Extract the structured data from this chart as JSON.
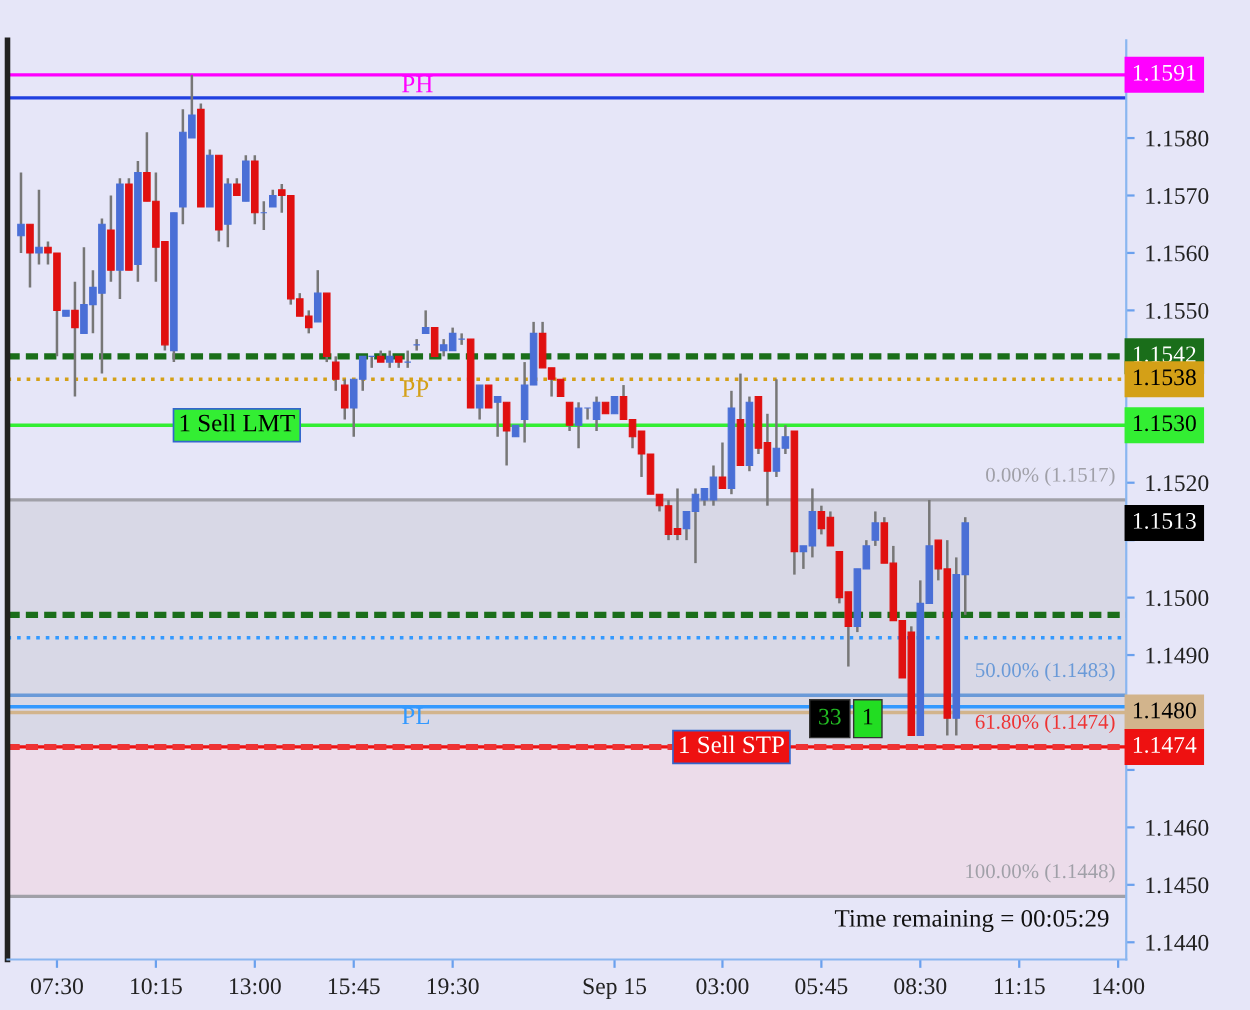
{
  "chart_data": {
    "type": "candlestick",
    "categories": [
      null,
      null,
      null,
      null,
      "07:30",
      null,
      null,
      null,
      null,
      null,
      null,
      null,
      null,
      null,
      null,
      "10:15",
      null,
      null,
      null,
      null,
      null,
      null,
      null,
      null,
      null,
      null,
      "13:00",
      null,
      null,
      null,
      null,
      null,
      null,
      null,
      null,
      null,
      null,
      "15:45",
      null,
      null,
      null,
      null,
      null,
      null,
      null,
      null,
      null,
      null,
      "19:30",
      null,
      null,
      null,
      null,
      null,
      null,
      null,
      null,
      null,
      null,
      null,
      null,
      null,
      null,
      null,
      null,
      null,
      "Sep 15",
      null,
      null,
      null,
      null,
      null,
      null,
      null,
      null,
      null,
      null,
      null,
      "03:00",
      null,
      null,
      null,
      null,
      null,
      null,
      null,
      null,
      null,
      null,
      "05:45",
      null,
      null,
      null,
      null,
      null,
      null,
      null,
      null,
      null,
      null,
      "08:30",
      null,
      null,
      null,
      null,
      null,
      null,
      null,
      null,
      null,
      null,
      "11:15",
      null,
      null,
      null,
      null,
      null,
      null,
      null,
      null,
      null,
      null,
      "14:00"
    ],
    "ohlc": [
      [
        1.1563,
        1.1574,
        1.156,
        1.1565
      ],
      [
        1.1565,
        1.1565,
        1.1554,
        1.156
      ],
      [
        1.156,
        1.1571,
        1.1558,
        1.1561
      ],
      [
        1.1561,
        1.1562,
        1.1558,
        1.156
      ],
      [
        1.156,
        1.156,
        1.1542,
        1.155
      ],
      [
        1.1549,
        1.155,
        1.1549,
        1.155
      ],
      [
        1.155,
        1.1555,
        1.1535,
        1.1547
      ],
      [
        1.1546,
        1.1561,
        1.1546,
        1.1551
      ],
      [
        1.1551,
        1.1557,
        1.1546,
        1.1554
      ],
      [
        1.1553,
        1.1566,
        1.1539,
        1.1565
      ],
      [
        1.1564,
        1.157,
        1.1555,
        1.1557
      ],
      [
        1.1557,
        1.1573,
        1.1552,
        1.1572
      ],
      [
        1.1572,
        1.1573,
        1.1557,
        1.1557
      ],
      [
        1.1558,
        1.1576,
        1.1555,
        1.1574
      ],
      [
        1.1574,
        1.1581,
        1.1569,
        1.1569
      ],
      [
        1.1569,
        1.1574,
        1.1555,
        1.1561
      ],
      [
        1.1562,
        1.1562,
        1.1543,
        1.1544
      ],
      [
        1.1543,
        1.1567,
        1.1541,
        1.1567
      ],
      [
        1.1568,
        1.1585,
        1.1565,
        1.1581
      ],
      [
        1.158,
        1.1591,
        1.158,
        1.1584
      ],
      [
        1.1585,
        1.1586,
        1.1568,
        1.1568
      ],
      [
        1.1568,
        1.1578,
        1.1568,
        1.1577
      ],
      [
        1.1577,
        1.1577,
        1.1562,
        1.1564
      ],
      [
        1.1565,
        1.1573,
        1.1561,
        1.1572
      ],
      [
        1.1572,
        1.1573,
        1.157,
        1.157
      ],
      [
        1.1569,
        1.1577,
        1.1569,
        1.1576
      ],
      [
        1.1576,
        1.1577,
        1.1565,
        1.1567
      ],
      [
        1.1567,
        1.1569,
        1.1564,
        1.1567
      ],
      [
        1.1568,
        1.1571,
        1.1568,
        1.157
      ],
      [
        1.1571,
        1.1572,
        1.1567,
        1.157
      ],
      [
        1.157,
        1.157,
        1.1551,
        1.1552
      ],
      [
        1.1552,
        1.1553,
        1.1549,
        1.1549
      ],
      [
        1.1549,
        1.155,
        1.1546,
        1.1547
      ],
      [
        1.1548,
        1.1557,
        1.1548,
        1.1553
      ],
      [
        1.1553,
        1.1553,
        1.1541,
        1.1542
      ],
      [
        1.1541,
        1.1542,
        1.1536,
        1.1538
      ],
      [
        1.1537,
        1.1538,
        1.1531,
        1.1533
      ],
      [
        1.1533,
        1.1538,
        1.1528,
        1.1538
      ],
      [
        1.1538,
        1.1542,
        1.1536,
        1.1542
      ],
      [
        1.1542,
        1.1542,
        1.154,
        1.1542
      ],
      [
        1.1542,
        1.1543,
        1.1541,
        1.1541
      ],
      [
        1.1541,
        1.1543,
        1.154,
        1.1542
      ],
      [
        1.1542,
        1.1542,
        1.154,
        1.1541
      ],
      [
        1.1541,
        1.1543,
        1.154,
        1.1541
      ],
      [
        1.1544,
        1.1545,
        1.1543,
        1.1544
      ],
      [
        1.1546,
        1.155,
        1.1546,
        1.1547
      ],
      [
        1.1547,
        1.1547,
        1.1542,
        1.1542
      ],
      [
        1.1543,
        1.1545,
        1.1542,
        1.1544
      ],
      [
        1.1543,
        1.1547,
        1.1543,
        1.1546
      ],
      [
        1.1545,
        1.1546,
        1.1544,
        1.1545
      ],
      [
        1.1545,
        1.1545,
        1.1533,
        1.1533
      ],
      [
        1.1533,
        1.1537,
        1.1531,
        1.1537
      ],
      [
        1.1537,
        1.1537,
        1.1533,
        1.1533
      ],
      [
        1.1534,
        1.1535,
        1.1528,
        1.1535
      ],
      [
        1.1534,
        1.1534,
        1.1523,
        1.1529
      ],
      [
        1.1528,
        1.153,
        1.1528,
        1.153
      ],
      [
        1.1531,
        1.1541,
        1.1527,
        1.1537
      ],
      [
        1.1537,
        1.1548,
        1.1537,
        1.1546
      ],
      [
        1.1546,
        1.1548,
        1.154,
        1.154
      ],
      [
        1.154,
        1.154,
        1.1535,
        1.1538
      ],
      [
        1.1538,
        1.1538,
        1.1535,
        1.1535
      ],
      [
        1.1534,
        1.1534,
        1.1529,
        1.153
      ],
      [
        1.153,
        1.1534,
        1.1526,
        1.1533
      ],
      [
        1.1533,
        1.1533,
        1.1531,
        1.1533
      ],
      [
        1.1531,
        1.1535,
        1.1529,
        1.1534
      ],
      [
        1.1534,
        1.1534,
        1.1532,
        1.1532
      ],
      [
        1.1532,
        1.1535,
        1.1532,
        1.1535
      ],
      [
        1.1535,
        1.1537,
        1.1531,
        1.1531
      ],
      [
        1.1531,
        1.1531,
        1.1526,
        1.1528
      ],
      [
        1.1529,
        1.1529,
        1.1521,
        1.1525
      ],
      [
        1.1525,
        1.1525,
        1.1518,
        1.1518
      ],
      [
        1.1518,
        1.1518,
        1.1515,
        1.1516
      ],
      [
        1.1516,
        1.1517,
        1.151,
        1.1511
      ],
      [
        1.1512,
        1.1519,
        1.151,
        1.1511
      ],
      [
        1.1512,
        1.1515,
        1.151,
        1.1515
      ],
      [
        1.1515,
        1.1519,
        1.1506,
        1.1518
      ],
      [
        1.1517,
        1.1519,
        1.1516,
        1.1519
      ],
      [
        1.1517,
        1.1523,
        1.1516,
        1.1521
      ],
      [
        1.1521,
        1.1527,
        1.1519,
        1.1519
      ],
      [
        1.1519,
        1.1536,
        1.1518,
        1.1533
      ],
      [
        1.1531,
        1.1539,
        1.1523,
        1.1523
      ],
      [
        1.1523,
        1.1535,
        1.1522,
        1.1534
      ],
      [
        1.1535,
        1.1535,
        1.1525,
        1.1526
      ],
      [
        1.1527,
        1.1532,
        1.1516,
        1.1522
      ],
      [
        1.1522,
        1.1538,
        1.1521,
        1.1526
      ],
      [
        1.1526,
        1.153,
        1.1525,
        1.1528
      ],
      [
        1.1529,
        1.1529,
        1.1504,
        1.1508
      ],
      [
        1.1508,
        1.1509,
        1.1505,
        1.1509
      ],
      [
        1.1509,
        1.1519,
        1.1507,
        1.1515
      ],
      [
        1.1515,
        1.1516,
        1.1511,
        1.1512
      ],
      [
        1.1514,
        1.1515,
        1.1509,
        1.1509
      ],
      [
        1.1508,
        1.1508,
        1.1499,
        1.15
      ],
      [
        1.1501,
        1.1501,
        1.1488,
        1.1495
      ],
      [
        1.1495,
        1.1505,
        1.1494,
        1.1505
      ],
      [
        1.1505,
        1.151,
        1.1505,
        1.1509
      ],
      [
        1.151,
        1.1515,
        1.1509,
        1.1513
      ],
      [
        1.1513,
        1.1514,
        1.1506,
        1.1506
      ],
      [
        1.1506,
        1.1509,
        1.1496,
        1.1496
      ],
      [
        1.1496,
        1.1496,
        1.1486,
        1.1486
      ],
      [
        1.1494,
        1.1495,
        1.1476,
        1.1476
      ],
      [
        1.1476,
        1.1503,
        1.1476,
        1.1499
      ],
      [
        1.1499,
        1.1517,
        1.1499,
        1.1509
      ],
      [
        1.151,
        1.151,
        1.1503,
        1.1505
      ],
      [
        1.1505,
        1.151,
        1.1476,
        1.1479
      ],
      [
        1.1479,
        1.1507,
        1.1476,
        1.1504
      ],
      [
        1.1504,
        1.1514,
        1.1497,
        1.1513
      ],
      null,
      null,
      null,
      null,
      null,
      null,
      null,
      null,
      null,
      null,
      null,
      null,
      null,
      null,
      null,
      null,
      null
    ],
    "colors": [
      "#4a6fd6",
      "#e01010",
      "#4a6fd6",
      "#e01010",
      "#e01010",
      "#4a6fd6",
      "#e01010",
      "#4a6fd6",
      "#4a6fd6",
      "#4a6fd6",
      "#e01010",
      "#4a6fd6",
      "#e01010",
      "#4a6fd6",
      "#e01010",
      "#e01010",
      "#e01010",
      "#4a6fd6",
      "#4a6fd6",
      "#4a6fd6",
      "#e01010",
      "#4a6fd6",
      "#e01010",
      "#4a6fd6",
      "#e01010",
      "#4a6fd6",
      "#e01010",
      "#4a6fd6",
      "#4a6fd6",
      "#e01010",
      "#e01010",
      "#e01010",
      "#e01010",
      "#4a6fd6",
      "#e01010",
      "#e01010",
      "#e01010",
      "#4a6fd6",
      "#4a6fd6",
      "#4a6fd6",
      "#e01010",
      "#4a6fd6",
      "#e01010",
      "#4a6fd6",
      "#4a6fd6",
      "#4a6fd6",
      "#e01010",
      "#4a6fd6",
      "#4a6fd6",
      "#4a6fd6",
      "#e01010",
      "#4a6fd6",
      "#e01010",
      "#4a6fd6",
      "#e01010",
      "#4a6fd6",
      "#4a6fd6",
      "#4a6fd6",
      "#e01010",
      "#e01010",
      "#e01010",
      "#e01010",
      "#4a6fd6",
      "#4a6fd6",
      "#4a6fd6",
      "#e01010",
      "#4a6fd6",
      "#e01010",
      "#e01010",
      "#e01010",
      "#e01010",
      "#e01010",
      "#e01010",
      "#e01010",
      "#4a6fd6",
      "#4a6fd6",
      "#4a6fd6",
      "#4a6fd6",
      "#e01010",
      "#4a6fd6",
      "#e01010",
      "#4a6fd6",
      "#e01010",
      "#e01010",
      "#4a6fd6",
      "#4a6fd6",
      "#e01010",
      "#4a6fd6",
      "#4a6fd6",
      "#e01010",
      "#e01010",
      "#e01010",
      "#e01010",
      "#4a6fd6",
      "#4a6fd6",
      "#4a6fd6",
      "#e01010",
      "#e01010",
      "#e01010",
      "#e01010",
      "#4a6fd6",
      "#4a6fd6",
      "#e01010",
      "#e01010",
      "#4a6fd6",
      "#4a6fd6",
      null,
      null,
      null,
      null,
      null,
      null,
      null,
      null,
      null,
      null,
      null,
      null,
      null,
      null,
      null,
      null,
      null
    ],
    "ylim": [
      1.1437,
      1.1597
    ],
    "yticks": [
      {
        "value": 1.144,
        "label": "1.1440"
      },
      {
        "value": 1.145,
        "label": "1.1450"
      },
      {
        "value": 1.146,
        "label": "1.1460"
      },
      {
        "value": 1.147,
        "label": null
      },
      {
        "value": 1.148,
        "label": null
      },
      {
        "value": 1.149,
        "label": "1.1490"
      },
      {
        "value": 1.15,
        "label": "1.1500"
      },
      {
        "value": 1.151,
        "label": null
      },
      {
        "value": 1.152,
        "label": "1.1520"
      },
      {
        "value": 1.153,
        "label": null
      },
      {
        "value": 1.154,
        "label": null
      },
      {
        "value": 1.155,
        "label": "1.1550"
      },
      {
        "value": 1.156,
        "label": "1.1560"
      },
      {
        "value": 1.157,
        "label": "1.1570"
      },
      {
        "value": 1.158,
        "label": "1.1580"
      }
    ],
    "bands": [
      {
        "axis": "y",
        "from": 1.1474,
        "to": 1.1517,
        "color": "#d8d8e6"
      },
      {
        "axis": "y",
        "from": 1.1448,
        "to": 1.1474,
        "color": "#ecdcea"
      }
    ],
    "ref_lines": [
      {
        "axis": "y",
        "value": 1.1591,
        "label": "PH",
        "color": "#ff00ff",
        "line_style": "solid"
      },
      {
        "axis": "y",
        "value": 1.1587,
        "label": null,
        "color": "#2040e0",
        "line_style": "solid"
      },
      {
        "axis": "y",
        "value": 1.1542,
        "label": null,
        "color": "#1a6e1a",
        "line_style": "dashed"
      },
      {
        "axis": "y",
        "value": 1.1538,
        "label": "PP",
        "color": "#d4a017",
        "line_style": "dotted"
      },
      {
        "axis": "y",
        "value": 1.153,
        "label": "1 Sell LMT",
        "color": "#33ee33",
        "line_style": "solid"
      },
      {
        "axis": "y",
        "value": 1.1497,
        "label": null,
        "color": "#1a6e1a",
        "line_style": "dashed"
      },
      {
        "axis": "y",
        "value": 1.1493,
        "label": null,
        "color": "#3399ff",
        "line_style": "dotted"
      },
      {
        "axis": "y",
        "value": 1.1481,
        "label": "PL",
        "color": "#3399ff",
        "line_style": "solid"
      },
      {
        "axis": "y",
        "value": 1.148,
        "label": null,
        "color": "#d2b48c",
        "line_style": "solid"
      },
      {
        "axis": "y",
        "value": 1.1474,
        "label": "1 Sell STP",
        "color": "#ee1111",
        "line_style": "solid"
      },
      {
        "axis": "y",
        "value": 1.1517,
        "label": "0.00% (1.1517)",
        "color": "#a0a0a8",
        "line_style": "solid"
      },
      {
        "axis": "y",
        "value": 1.1483,
        "label": "50.00% (1.1483)",
        "color": "#6a9ad8",
        "line_style": "solid"
      },
      {
        "axis": "y",
        "value": 1.1474,
        "label": "61.80% (1.1474)",
        "color": "#ee3333",
        "line_style": "dashed"
      },
      {
        "axis": "y",
        "value": 1.1448,
        "label": "100.00% (1.1448)",
        "color": "#a0a0a8",
        "line_style": "solid"
      }
    ],
    "annotations": [
      {
        "text": "1.1591",
        "y": 1.1591
      },
      {
        "text": "1.1542",
        "y": 1.1542
      },
      {
        "text": "1.1538",
        "y": 1.1538
      },
      {
        "text": "1.1530",
        "y": 1.153
      },
      {
        "text": "1.1513",
        "y": 1.1513
      },
      {
        "text": "1.1480",
        "y": 1.148
      },
      {
        "text": "1.1474",
        "y": 1.1474
      },
      "33",
      "1",
      "Time remaining = 00:05:29"
    ]
  }
}
